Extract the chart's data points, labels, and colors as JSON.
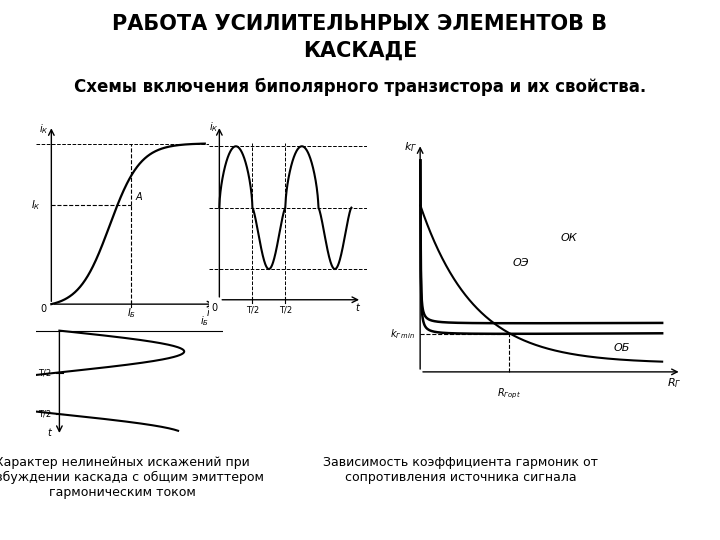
{
  "title_line1": "РАБОТА УСИЛИТЕЛЬНРЫХ ЭЛЕМЕНТОВ В",
  "title_line2": "КАСКАДЕ",
  "subtitle": "Схемы включения биполярного транзистора и их свойства.",
  "caption_left": "Характер нелинейных искажений при\nвозбуждении каскада с общим эмиттером\nгармоническим током",
  "caption_right": "Зависимость коэффициента гармоник от\nсопротивления источника сигнала",
  "bg_color": "#ffffff",
  "text_color": "#000000",
  "title_fontsize": 15,
  "subtitle_fontsize": 12,
  "caption_fontsize": 9
}
